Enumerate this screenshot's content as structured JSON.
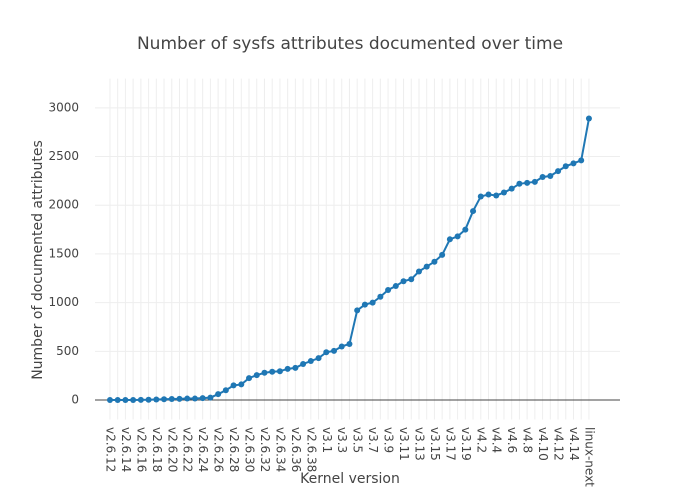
{
  "chart_data": {
    "type": "line",
    "title": "Number of sysfs attributes documented over time",
    "x_label": "Kernel version",
    "y_label": "Number of documented attributes",
    "categories": [
      "v2.6.12",
      null,
      "v2.6.14",
      null,
      "v2.6.16",
      null,
      "v2.6.18",
      null,
      "v2.6.20",
      null,
      "v2.6.22",
      null,
      "v2.6.24",
      null,
      "v2.6.26",
      null,
      "v2.6.28",
      null,
      "v2.6.30",
      null,
      "v2.6.32",
      null,
      "v2.6.34",
      null,
      "v2.6.36",
      null,
      "v2.6.38",
      null,
      "v3.1",
      null,
      "v3.3",
      null,
      "v3.5",
      null,
      "v3.7",
      null,
      "v3.9",
      null,
      "v3.11",
      null,
      "v3.13",
      null,
      "v3.15",
      null,
      "v3.17",
      null,
      "v3.19",
      null,
      "v4.2",
      null,
      "v4.4",
      null,
      "v4.6",
      null,
      "v4.8",
      null,
      "v4.10",
      null,
      "v4.12",
      null,
      "v4.14",
      null,
      "linux-next"
    ],
    "series": [
      {
        "name": "attributes",
        "color": "#1f77b4",
        "values": [
          0,
          0,
          0,
          0,
          2,
          3,
          5,
          8,
          10,
          12,
          15,
          15,
          20,
          25,
          60,
          100,
          150,
          160,
          225,
          255,
          280,
          290,
          295,
          320,
          330,
          370,
          400,
          430,
          490,
          505,
          550,
          575,
          920,
          980,
          1000,
          1060,
          1130,
          1170,
          1220,
          1240,
          1320,
          1370,
          1420,
          1490,
          1650,
          1680,
          1750,
          1940,
          2090,
          2110,
          2100,
          2130,
          2170,
          2220,
          2230,
          2240,
          2290,
          2300,
          2350,
          2400,
          2430,
          2460,
          2890
        ]
      }
    ],
    "ylim": [
      -200,
      3300
    ],
    "yticks": [
      0,
      500,
      1000,
      1500,
      2000,
      2500,
      3000
    ],
    "grid": true
  }
}
